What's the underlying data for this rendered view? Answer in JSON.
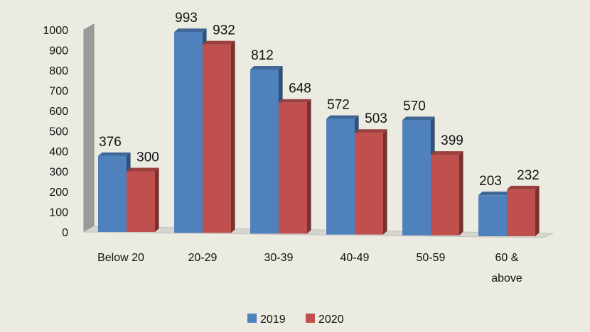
{
  "chart_data": {
    "type": "bar",
    "title": "",
    "xlabel": "",
    "ylabel": "",
    "ylim": [
      0,
      1000
    ],
    "yticks": [
      0,
      100,
      200,
      300,
      400,
      500,
      600,
      700,
      800,
      900,
      1000
    ],
    "categories": [
      [
        "Below 20"
      ],
      [
        "20-29"
      ],
      [
        "30-39"
      ],
      [
        "40-49"
      ],
      [
        "50-59"
      ],
      [
        "60 &",
        "above"
      ]
    ],
    "series": [
      {
        "name": "2019",
        "values": [
          376,
          993,
          812,
          572,
          570,
          203
        ],
        "color": "#4f81bd"
      },
      {
        "name": "2020",
        "values": [
          300,
          932,
          648,
          503,
          399,
          232
        ],
        "color": "#c0504d"
      }
    ],
    "legend_position": "bottom",
    "grid": false,
    "style": "3d-clustered-column"
  }
}
